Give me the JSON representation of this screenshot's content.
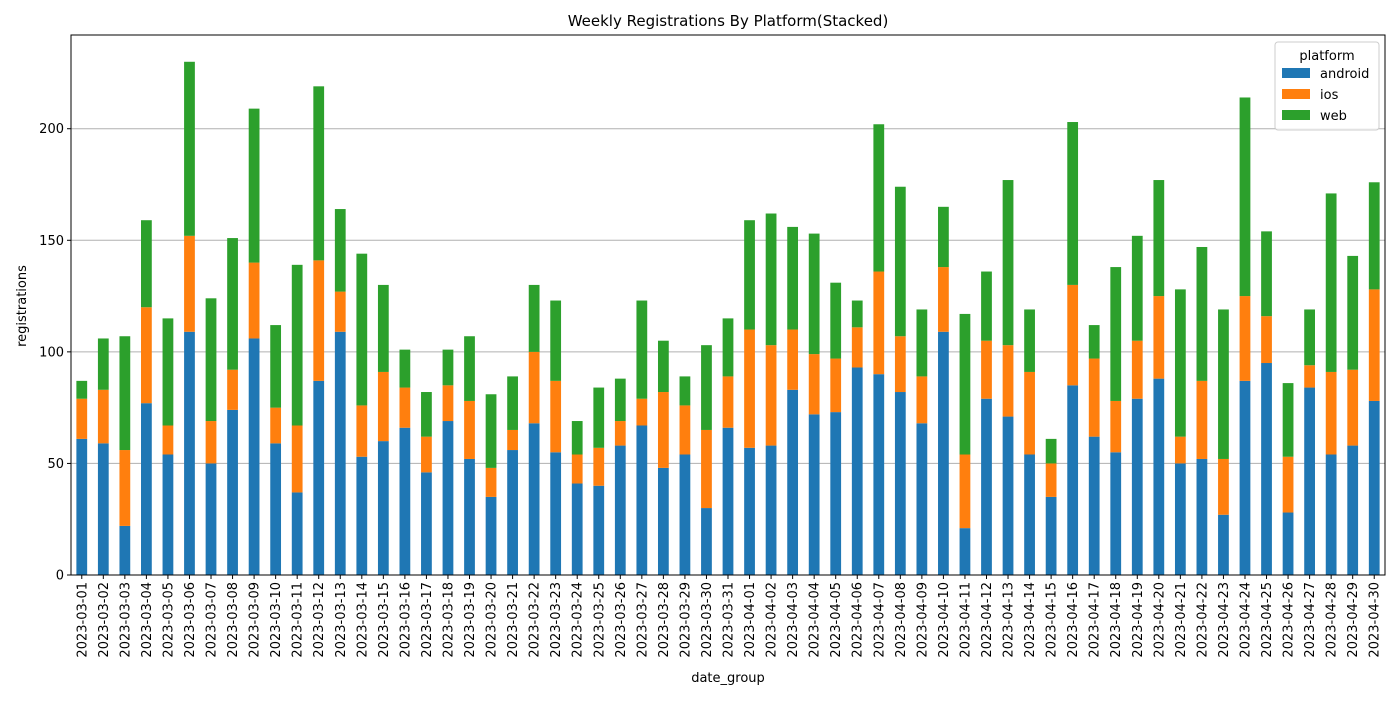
{
  "chart_data": {
    "type": "bar",
    "stacked": true,
    "title": "Weekly Registrations By Platform(Stacked)",
    "xlabel": "date_group",
    "ylabel": "registrations",
    "ylim": [
      0,
      242
    ],
    "yticks": [
      0,
      50,
      100,
      150,
      200
    ],
    "grid": "horizontal",
    "legend": {
      "title": "platform",
      "placement": "top-right"
    },
    "categories": [
      "2023-03-01",
      "2023-03-02",
      "2023-03-03",
      "2023-03-04",
      "2023-03-05",
      "2023-03-06",
      "2023-03-07",
      "2023-03-08",
      "2023-03-09",
      "2023-03-10",
      "2023-03-11",
      "2023-03-12",
      "2023-03-13",
      "2023-03-14",
      "2023-03-15",
      "2023-03-16",
      "2023-03-17",
      "2023-03-18",
      "2023-03-19",
      "2023-03-20",
      "2023-03-21",
      "2023-03-22",
      "2023-03-23",
      "2023-03-24",
      "2023-03-25",
      "2023-03-26",
      "2023-03-27",
      "2023-03-28",
      "2023-03-29",
      "2023-03-30",
      "2023-03-31",
      "2023-04-01",
      "2023-04-02",
      "2023-04-03",
      "2023-04-04",
      "2023-04-05",
      "2023-04-06",
      "2023-04-07",
      "2023-04-08",
      "2023-04-09",
      "2023-04-10",
      "2023-04-11",
      "2023-04-12",
      "2023-04-13",
      "2023-04-14",
      "2023-04-15",
      "2023-04-16",
      "2023-04-17",
      "2023-04-18",
      "2023-04-19",
      "2023-04-20",
      "2023-04-21",
      "2023-04-22",
      "2023-04-23",
      "2023-04-24",
      "2023-04-25",
      "2023-04-26",
      "2023-04-27",
      "2023-04-28",
      "2023-04-29",
      "2023-04-30"
    ],
    "series": [
      {
        "name": "android",
        "color": "#1f77b4",
        "values": [
          61,
          59,
          22,
          77,
          54,
          109,
          50,
          74,
          106,
          59,
          37,
          87,
          109,
          53,
          60,
          66,
          46,
          69,
          52,
          35,
          56,
          68,
          55,
          41,
          40,
          58,
          67,
          48,
          54,
          30,
          66,
          57,
          58,
          83,
          72,
          73,
          93,
          90,
          82,
          68,
          109,
          21,
          79,
          71,
          54,
          35,
          85,
          62,
          55,
          79,
          88,
          50,
          52,
          27,
          87,
          95,
          28,
          84,
          54,
          58,
          78
        ]
      },
      {
        "name": "ios",
        "color": "#ff7f0e",
        "values": [
          18,
          24,
          34,
          43,
          13,
          43,
          19,
          18,
          34,
          16,
          30,
          54,
          18,
          23,
          31,
          18,
          16,
          16,
          26,
          13,
          9,
          32,
          32,
          13,
          17,
          11,
          12,
          34,
          22,
          35,
          23,
          53,
          45,
          27,
          27,
          24,
          18,
          46,
          25,
          21,
          29,
          33,
          26,
          32,
          37,
          15,
          45,
          35,
          23,
          26,
          37,
          12,
          35,
          25,
          38,
          21,
          25,
          10,
          37,
          34,
          50
        ]
      },
      {
        "name": "web",
        "color": "#2ca02c",
        "values": [
          8,
          23,
          51,
          39,
          48,
          78,
          55,
          59,
          69,
          37,
          72,
          78,
          37,
          68,
          39,
          17,
          20,
          16,
          29,
          33,
          24,
          30,
          36,
          15,
          27,
          19,
          44,
          23,
          13,
          38,
          26,
          49,
          59,
          46,
          54,
          34,
          12,
          66,
          67,
          30,
          27,
          63,
          31,
          74,
          28,
          11,
          73,
          15,
          60,
          47,
          52,
          66,
          60,
          67,
          89,
          38,
          33,
          25,
          80,
          51,
          48
        ]
      }
    ]
  }
}
